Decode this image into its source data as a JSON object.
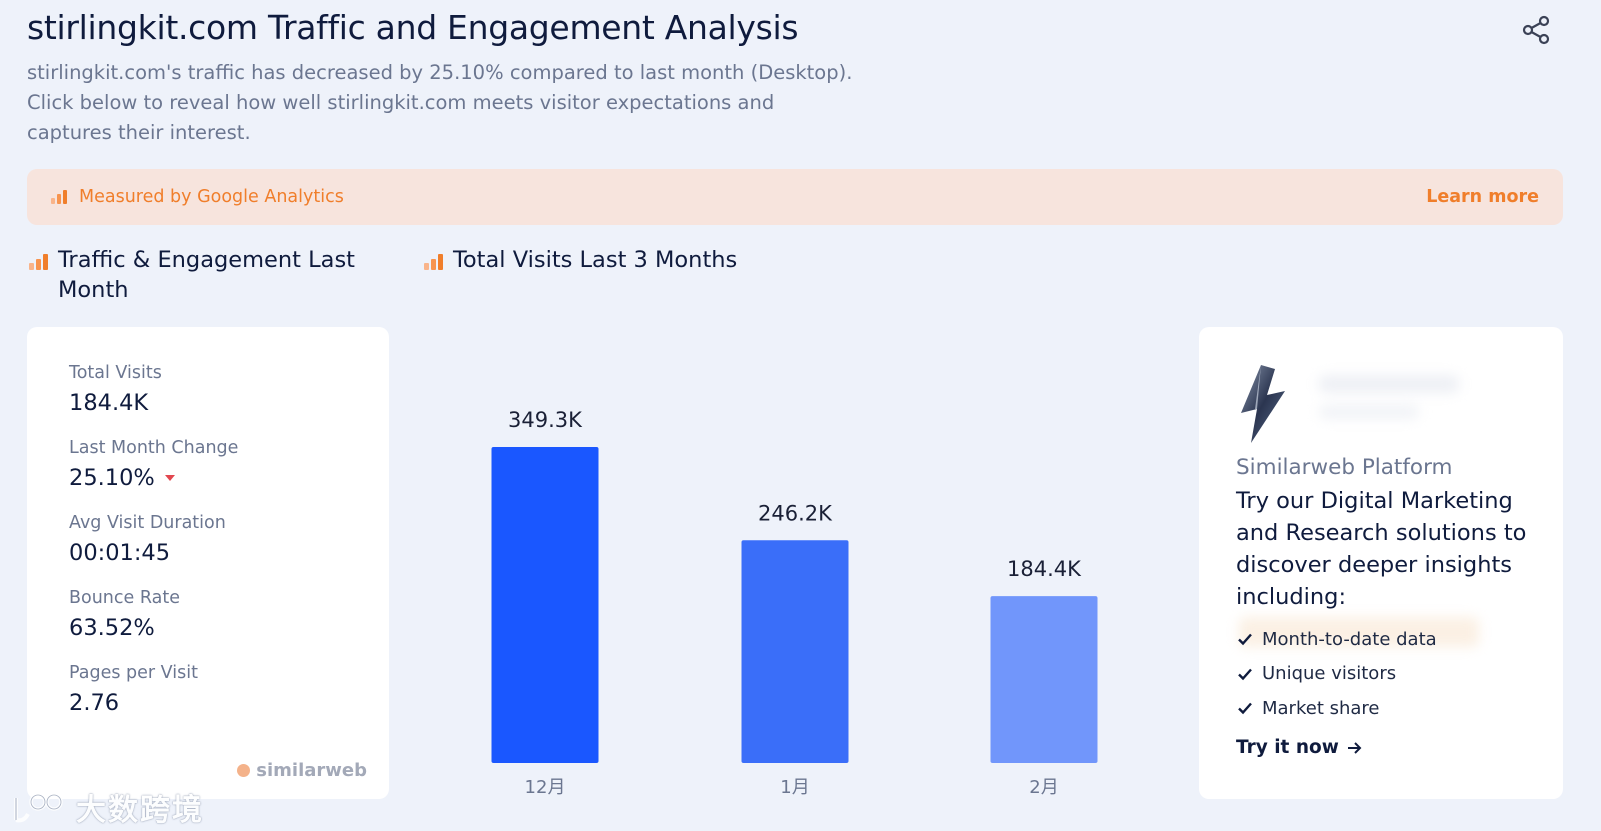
{
  "header": {
    "title": "stirlingkit.com Traffic and Engagement Analysis",
    "subtitle": "stirlingkit.com's traffic has decreased by 25.10% compared to last month (Desktop). Click below to reveal how well stirlingkit.com meets visitor expectations and captures their interest."
  },
  "banner": {
    "text": "Measured by Google Analytics",
    "link": "Learn more",
    "color": "#f07e2b",
    "background": "#f7e4dd"
  },
  "sections": {
    "engagement_title": "Traffic & Engagement Last Month",
    "visits_title": "Total Visits Last 3 Months"
  },
  "metrics": [
    {
      "label": "Total Visits",
      "value": "184.4K"
    },
    {
      "label": "Last Month Change",
      "value": "25.10%",
      "trend": "down"
    },
    {
      "label": "Avg Visit Duration",
      "value": "00:01:45"
    },
    {
      "label": "Bounce Rate",
      "value": "63.52%"
    },
    {
      "label": "Pages per Visit",
      "value": "2.76"
    }
  ],
  "brand": {
    "name": "similarweb"
  },
  "chart_data": {
    "type": "bar",
    "title": "Total Visits Last 3 Months",
    "categories": [
      "12月",
      "1月",
      "2月"
    ],
    "values": [
      349300,
      246200,
      184400
    ],
    "data_labels": [
      "349.3K",
      "246.2K",
      "184.4K"
    ],
    "bar_colors": [
      "#1a57ff",
      "#3a6ef9",
      "#7196fb"
    ],
    "ylim": [
      0,
      349300
    ],
    "grid": false,
    "xlabel": "",
    "ylabel": ""
  },
  "promo": {
    "kicker": "Similarweb Platform",
    "headline": "Try our Digital Marketing and Research solutions to discover deeper insights including:",
    "features": [
      "Month-to-date data",
      "Unique visitors",
      "Market share"
    ],
    "cta": "Try it now"
  },
  "watermark": {
    "text": "大数跨境"
  },
  "icons": {
    "share": "share-icon",
    "ga": "analytics-bars-icon",
    "check": "check-icon",
    "arrow": "arrow-right-icon",
    "logo": "lightning-bolt-icon"
  }
}
